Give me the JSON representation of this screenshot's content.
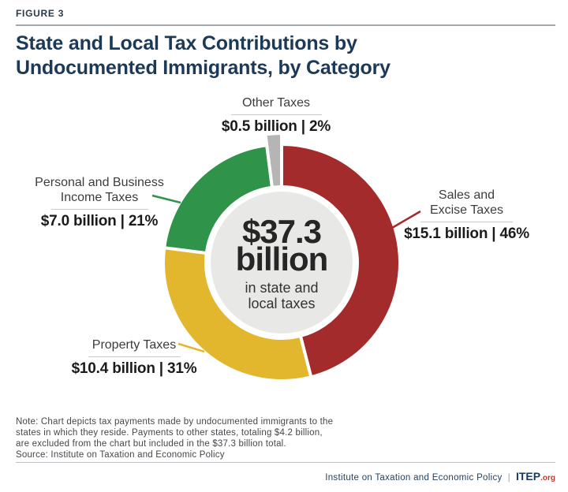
{
  "header": {
    "figure_label": "FIGURE 3",
    "title_line1": "State and Local Tax Contributions by",
    "title_line2": "Undocumented Immigrants, by Category"
  },
  "chart_data": {
    "type": "pie",
    "subtype": "donut",
    "title": "State and Local Tax Contributions by Undocumented Immigrants, by Category",
    "units": "USD billions",
    "donut_hole_color": "#E8E8E7",
    "total": {
      "amount": "$37.3",
      "unit_word": "billion",
      "caption_line1": "in state and",
      "caption_line2": "local taxes"
    },
    "segments": [
      {
        "label": "Sales and Excise Taxes",
        "label_line1": "Sales and",
        "label_line2": "Excise Taxes",
        "value": 15.1,
        "percent": 46,
        "value_text": "$15.1 billion | 46%",
        "color": "#A32B2B",
        "exploded": false
      },
      {
        "label": "Property Taxes",
        "label_line1": "Property Taxes",
        "value": 10.4,
        "percent": 31,
        "value_text": "$10.4 billion | 31%",
        "color": "#E2B72E",
        "exploded": false
      },
      {
        "label": "Personal and Business Income Taxes",
        "label_line1": "Personal and Business",
        "label_line2": "Income Taxes",
        "value": 7.0,
        "percent": 21,
        "value_text": "$7.0 billion | 21%",
        "color": "#2F9349",
        "exploded": false
      },
      {
        "label": "Other Taxes",
        "label_line1": "Other Taxes",
        "value": 0.5,
        "percent": 2,
        "value_text": "$0.5 billion | 2%",
        "color": "#B5B5B5",
        "exploded": true
      }
    ]
  },
  "note": {
    "lines": [
      "Note: Chart depicts tax payments made by undocumented immigrants to the",
      "states in which they reside. Payments to other states, totaling $4.2 billion,",
      "are excluded from the chart but included in the $37.3 billion total.",
      "Source: Institute on Taxation and Economic Policy"
    ]
  },
  "footer": {
    "org_name": "Institute on Taxation and Economic Policy",
    "separator": "|",
    "logo_text": "ITEP",
    "logo_suffix": ".org"
  }
}
